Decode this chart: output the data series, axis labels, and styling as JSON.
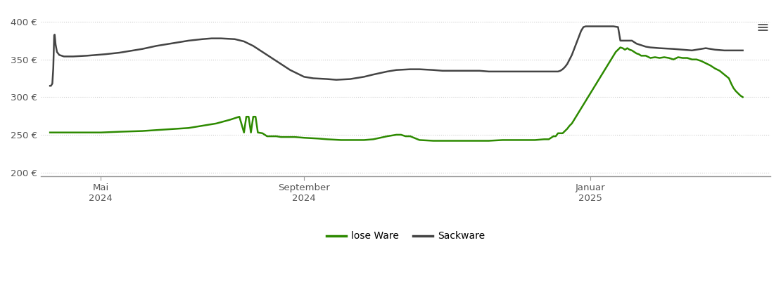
{
  "background_color": "#ffffff",
  "grid_color": "#cccccc",
  "grid_style": "dotted",
  "lose_ware_color": "#2d8a00",
  "sackware_color": "#444444",
  "legend_labels": [
    "lose Ware",
    "Sackware"
  ],
  "ylim": [
    195,
    415
  ],
  "xlim": [
    -0.2,
    15.6
  ],
  "yticks": [
    200,
    250,
    300,
    350,
    400
  ],
  "ytick_labels": [
    "200 €",
    "250 €",
    "300 €",
    "350 €",
    "400 €"
  ],
  "xtick_positions": [
    1.1,
    5.5,
    11.7
  ],
  "xtick_labels": [
    "Mai\n2024",
    "September\n2024",
    "Januar\n2025"
  ],
  "lose_ware": [
    [
      0.0,
      253
    ],
    [
      0.3,
      253
    ],
    [
      0.7,
      253
    ],
    [
      1.1,
      253
    ],
    [
      1.5,
      254
    ],
    [
      2.0,
      255
    ],
    [
      2.5,
      257
    ],
    [
      3.0,
      259
    ],
    [
      3.3,
      262
    ],
    [
      3.6,
      265
    ],
    [
      3.9,
      270
    ],
    [
      4.0,
      272
    ],
    [
      4.1,
      274
    ],
    [
      4.2,
      253
    ],
    [
      4.25,
      274
    ],
    [
      4.3,
      274
    ],
    [
      4.35,
      253
    ],
    [
      4.4,
      274
    ],
    [
      4.45,
      274
    ],
    [
      4.5,
      253
    ],
    [
      4.6,
      252
    ],
    [
      4.7,
      248
    ],
    [
      4.9,
      248
    ],
    [
      5.0,
      247
    ],
    [
      5.3,
      247
    ],
    [
      5.5,
      246
    ],
    [
      5.8,
      245
    ],
    [
      6.0,
      244
    ],
    [
      6.3,
      243
    ],
    [
      6.5,
      243
    ],
    [
      6.8,
      243
    ],
    [
      7.0,
      244
    ],
    [
      7.3,
      248
    ],
    [
      7.5,
      250
    ],
    [
      7.6,
      250
    ],
    [
      7.7,
      248
    ],
    [
      7.8,
      248
    ],
    [
      8.0,
      243
    ],
    [
      8.3,
      242
    ],
    [
      8.6,
      242
    ],
    [
      9.0,
      242
    ],
    [
      9.3,
      242
    ],
    [
      9.5,
      242
    ],
    [
      9.8,
      243
    ],
    [
      10.0,
      243
    ],
    [
      10.3,
      243
    ],
    [
      10.5,
      243
    ],
    [
      10.7,
      244
    ],
    [
      10.8,
      244
    ],
    [
      10.9,
      248
    ],
    [
      10.95,
      248
    ],
    [
      11.0,
      252
    ],
    [
      11.05,
      252
    ],
    [
      11.1,
      252
    ],
    [
      11.15,
      255
    ],
    [
      11.2,
      258
    ],
    [
      11.25,
      262
    ],
    [
      11.3,
      265
    ],
    [
      11.35,
      270
    ],
    [
      11.4,
      275
    ],
    [
      11.45,
      280
    ],
    [
      11.5,
      285
    ],
    [
      11.55,
      290
    ],
    [
      11.6,
      295
    ],
    [
      11.65,
      300
    ],
    [
      11.7,
      305
    ],
    [
      11.75,
      310
    ],
    [
      11.8,
      315
    ],
    [
      11.85,
      320
    ],
    [
      11.9,
      325
    ],
    [
      11.95,
      330
    ],
    [
      12.0,
      335
    ],
    [
      12.05,
      340
    ],
    [
      12.1,
      345
    ],
    [
      12.15,
      350
    ],
    [
      12.2,
      355
    ],
    [
      12.25,
      360
    ],
    [
      12.3,
      363
    ],
    [
      12.35,
      366
    ],
    [
      12.4,
      365
    ],
    [
      12.45,
      363
    ],
    [
      12.5,
      365
    ],
    [
      12.55,
      363
    ],
    [
      12.6,
      362
    ],
    [
      12.65,
      360
    ],
    [
      12.7,
      358
    ],
    [
      12.75,
      357
    ],
    [
      12.8,
      355
    ],
    [
      12.9,
      355
    ],
    [
      13.0,
      352
    ],
    [
      13.1,
      353
    ],
    [
      13.2,
      352
    ],
    [
      13.3,
      353
    ],
    [
      13.4,
      352
    ],
    [
      13.5,
      350
    ],
    [
      13.6,
      353
    ],
    [
      13.7,
      352
    ],
    [
      13.8,
      352
    ],
    [
      13.9,
      350
    ],
    [
      14.0,
      350
    ],
    [
      14.1,
      348
    ],
    [
      14.2,
      345
    ],
    [
      14.3,
      342
    ],
    [
      14.4,
      338
    ],
    [
      14.5,
      335
    ],
    [
      14.6,
      330
    ],
    [
      14.7,
      325
    ],
    [
      14.75,
      318
    ],
    [
      14.8,
      312
    ],
    [
      14.85,
      308
    ],
    [
      14.9,
      305
    ],
    [
      14.95,
      302
    ],
    [
      15.0,
      300
    ]
  ],
  "sackware": [
    [
      0.0,
      315
    ],
    [
      0.02,
      315
    ],
    [
      0.05,
      318
    ],
    [
      0.07,
      338
    ],
    [
      0.09,
      382
    ],
    [
      0.1,
      383
    ],
    [
      0.12,
      370
    ],
    [
      0.15,
      360
    ],
    [
      0.2,
      356
    ],
    [
      0.3,
      354
    ],
    [
      0.5,
      354
    ],
    [
      0.8,
      355
    ],
    [
      1.0,
      356
    ],
    [
      1.2,
      357
    ],
    [
      1.5,
      359
    ],
    [
      1.8,
      362
    ],
    [
      2.0,
      364
    ],
    [
      2.3,
      368
    ],
    [
      2.5,
      370
    ],
    [
      2.8,
      373
    ],
    [
      3.0,
      375
    ],
    [
      3.3,
      377
    ],
    [
      3.5,
      378
    ],
    [
      3.7,
      378
    ],
    [
      4.0,
      377
    ],
    [
      4.2,
      374
    ],
    [
      4.4,
      368
    ],
    [
      4.6,
      360
    ],
    [
      4.8,
      352
    ],
    [
      5.0,
      344
    ],
    [
      5.2,
      336
    ],
    [
      5.4,
      330
    ],
    [
      5.5,
      327
    ],
    [
      5.7,
      325
    ],
    [
      6.0,
      324
    ],
    [
      6.2,
      323
    ],
    [
      6.5,
      324
    ],
    [
      6.8,
      327
    ],
    [
      7.0,
      330
    ],
    [
      7.3,
      334
    ],
    [
      7.5,
      336
    ],
    [
      7.8,
      337
    ],
    [
      8.0,
      337
    ],
    [
      8.3,
      336
    ],
    [
      8.5,
      335
    ],
    [
      8.8,
      335
    ],
    [
      9.0,
      335
    ],
    [
      9.3,
      335
    ],
    [
      9.5,
      334
    ],
    [
      9.8,
      334
    ],
    [
      10.0,
      334
    ],
    [
      10.3,
      334
    ],
    [
      10.5,
      334
    ],
    [
      10.7,
      334
    ],
    [
      10.9,
      334
    ],
    [
      11.0,
      334
    ],
    [
      11.05,
      335
    ],
    [
      11.1,
      337
    ],
    [
      11.15,
      340
    ],
    [
      11.2,
      344
    ],
    [
      11.25,
      350
    ],
    [
      11.3,
      356
    ],
    [
      11.35,
      364
    ],
    [
      11.4,
      372
    ],
    [
      11.45,
      380
    ],
    [
      11.5,
      388
    ],
    [
      11.55,
      393
    ],
    [
      11.6,
      394
    ],
    [
      11.65,
      394
    ],
    [
      11.7,
      394
    ],
    [
      11.8,
      394
    ],
    [
      11.9,
      394
    ],
    [
      12.0,
      394
    ],
    [
      12.1,
      394
    ],
    [
      12.2,
      394
    ],
    [
      12.3,
      393
    ],
    [
      12.35,
      375
    ],
    [
      12.4,
      375
    ],
    [
      12.5,
      375
    ],
    [
      12.6,
      375
    ],
    [
      12.65,
      373
    ],
    [
      12.7,
      371
    ],
    [
      12.8,
      369
    ],
    [
      12.9,
      367
    ],
    [
      13.0,
      366
    ],
    [
      13.2,
      365
    ],
    [
      13.5,
      364
    ],
    [
      13.7,
      363
    ],
    [
      13.9,
      362
    ],
    [
      14.0,
      363
    ],
    [
      14.2,
      365
    ],
    [
      14.4,
      363
    ],
    [
      14.6,
      362
    ],
    [
      14.8,
      362
    ],
    [
      15.0,
      362
    ]
  ]
}
